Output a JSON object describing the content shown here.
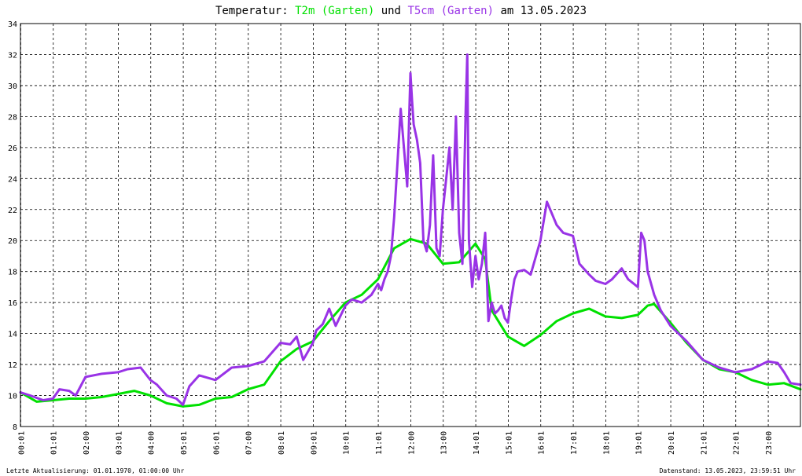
{
  "chart_data": {
    "type": "line",
    "title": {
      "prefix": "Temperatur:",
      "series1": "T2m (Garten)",
      "mid": "und",
      "series2": "T5cm (Garten)",
      "suffix": "am 13.05.2023"
    },
    "ylim": [
      8,
      34
    ],
    "yticks": [
      "8",
      "10",
      "12",
      "14",
      "16",
      "18",
      "20",
      "22",
      "24",
      "26",
      "28",
      "30",
      "32",
      "34"
    ],
    "xlim": [
      0,
      24
    ],
    "xticks": [
      "00:01",
      "01:01",
      "02:00",
      "03:01",
      "04:00",
      "05:01",
      "06:01",
      "07:00",
      "08:01",
      "09:01",
      "10:01",
      "11:01",
      "12:00",
      "13:00",
      "14:01",
      "15:01",
      "16:01",
      "17:01",
      "18:01",
      "19:01",
      "20:01",
      "21:01",
      "22:01",
      "23:00"
    ],
    "grid": true,
    "series": [
      {
        "name": "T2m (Garten)",
        "color": "#00e000",
        "x": [
          0,
          0.5,
          1,
          1.5,
          2,
          2.5,
          3,
          3.5,
          4,
          4.5,
          5,
          5.5,
          6,
          6.5,
          7,
          7.5,
          8,
          8.5,
          9,
          9.5,
          10,
          10.5,
          11,
          11.5,
          12,
          12.5,
          13,
          13.5,
          14,
          14.3,
          14.5,
          15,
          15.5,
          16,
          16.5,
          17,
          17.5,
          18,
          18.5,
          19,
          19.3,
          19.5,
          20,
          20.5,
          21,
          21.5,
          22,
          22.5,
          23,
          23.5,
          24
        ],
        "y": [
          10.2,
          9.6,
          9.7,
          9.8,
          9.8,
          9.9,
          10.1,
          10.3,
          10.0,
          9.5,
          9.3,
          9.4,
          9.8,
          9.9,
          10.4,
          10.7,
          12.2,
          13.0,
          13.5,
          14.8,
          16.0,
          16.5,
          17.5,
          19.5,
          20.1,
          19.8,
          18.5,
          18.6,
          19.8,
          18.8,
          15.5,
          13.8,
          13.2,
          13.9,
          14.8,
          15.3,
          15.6,
          15.1,
          15.0,
          15.2,
          15.8,
          15.9,
          14.7,
          13.4,
          12.3,
          11.7,
          11.5,
          11.0,
          10.7,
          10.8,
          10.4
        ]
      },
      {
        "name": "T5cm (Garten)",
        "color": "#9933e6",
        "x": [
          0,
          0.3,
          0.7,
          1,
          1.2,
          1.5,
          1.7,
          2,
          2.5,
          3,
          3.3,
          3.7,
          4,
          4.2,
          4.5,
          4.8,
          5,
          5.2,
          5.5,
          6,
          6.5,
          7,
          7.5,
          8,
          8.3,
          8.5,
          8.7,
          9,
          9.1,
          9.3,
          9.5,
          9.7,
          10,
          10.2,
          10.5,
          10.8,
          11,
          11.1,
          11.2,
          11.3,
          11.4,
          11.5,
          11.6,
          11.7,
          11.8,
          11.9,
          12,
          12.05,
          12.1,
          12.2,
          12.3,
          12.4,
          12.5,
          12.6,
          12.7,
          12.8,
          12.9,
          13,
          13.1,
          13.2,
          13.3,
          13.4,
          13.5,
          13.6,
          13.7,
          13.75,
          13.8,
          13.9,
          14,
          14.1,
          14.2,
          14.3,
          14.4,
          14.5,
          14.6,
          14.7,
          14.8,
          14.9,
          15,
          15.1,
          15.2,
          15.3,
          15.5,
          15.7,
          16,
          16.2,
          16.5,
          16.7,
          17,
          17.2,
          17.5,
          17.7,
          18,
          18.2,
          18.5,
          18.7,
          19,
          19.1,
          19.2,
          19.3,
          19.5,
          19.7,
          20,
          20.5,
          21,
          21.5,
          22,
          22.5,
          23,
          23.3,
          23.5,
          23.7,
          24
        ],
        "y": [
          10.2,
          10.0,
          9.7,
          9.8,
          10.4,
          10.3,
          10.0,
          11.2,
          11.4,
          11.5,
          11.7,
          11.8,
          11.0,
          10.7,
          10.0,
          9.8,
          9.4,
          10.6,
          11.3,
          11.0,
          11.8,
          11.9,
          12.2,
          13.4,
          13.3,
          13.8,
          12.3,
          13.4,
          14.2,
          14.6,
          15.6,
          14.5,
          15.8,
          16.2,
          16.0,
          16.5,
          17.2,
          16.8,
          17.5,
          18.0,
          19.0,
          21.5,
          25.0,
          28.5,
          26.0,
          23.5,
          30.8,
          29.0,
          27.5,
          26.5,
          25.0,
          20.0,
          19.3,
          21.0,
          25.5,
          19.5,
          19.0,
          22.0,
          24.0,
          26.0,
          22.0,
          28.0,
          20.5,
          18.5,
          28.5,
          32.0,
          20.0,
          17.0,
          19.0,
          17.5,
          18.5,
          20.5,
          14.8,
          16.0,
          15.3,
          15.5,
          15.8,
          15.0,
          14.7,
          16.2,
          17.5,
          18.0,
          18.1,
          17.8,
          20.0,
          22.5,
          21.0,
          20.5,
          20.3,
          18.5,
          17.8,
          17.4,
          17.2,
          17.5,
          18.2,
          17.5,
          17.0,
          20.5,
          20.0,
          18.0,
          16.5,
          15.5,
          14.5,
          13.5,
          12.3,
          11.8,
          11.5,
          11.7,
          12.2,
          12.1,
          11.5,
          10.8,
          10.7
        ]
      }
    ]
  },
  "footer": {
    "left": "Letzte Aktualisierung: 01.01.1970, 01:00:00 Uhr",
    "right": "Datenstand: 13.05.2023, 23:59:51 Uhr"
  }
}
